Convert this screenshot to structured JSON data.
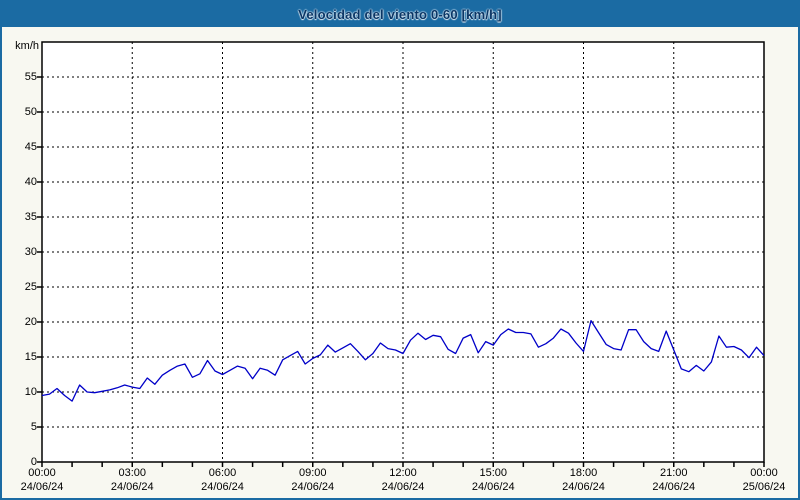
{
  "header": {
    "title": "Velocidad del viento 0-60 [km/h]"
  },
  "colors": {
    "header_bg": "#1b6ba3",
    "frame_border": "#1b6ba3",
    "page_bg": "#f8f8f1",
    "plot_bg": "#ffffff",
    "plot_border": "#000000",
    "grid": "#000000",
    "line": "#0000c8",
    "title_text": "#0a3666",
    "axis_text": "#000000"
  },
  "chart_data": {
    "type": "line",
    "title": "Velocidad del viento 0-60 [km/h]",
    "ylabel": "km/h",
    "ylim": [
      0,
      60
    ],
    "y_ticks": [
      0,
      5,
      10,
      15,
      20,
      25,
      30,
      35,
      40,
      45,
      50,
      55
    ],
    "x_range_hours": [
      0,
      24
    ],
    "x_minor_tick_hours": 1,
    "x_major_tick_hours": 3,
    "grid": "dashed, both axes, black on white",
    "legend_position": "none",
    "x_tick_labels": [
      {
        "time": "00:00",
        "date": "24/06/24"
      },
      {
        "time": "03:00",
        "date": "24/06/24"
      },
      {
        "time": "06:00",
        "date": "24/06/24"
      },
      {
        "time": "09:00",
        "date": "24/06/24"
      },
      {
        "time": "12:00",
        "date": "24/06/24"
      },
      {
        "time": "15:00",
        "date": "24/06/24"
      },
      {
        "time": "18:00",
        "date": "24/06/24"
      },
      {
        "time": "21:00",
        "date": "24/06/24"
      },
      {
        "time": "00:00",
        "date": "25/06/24"
      }
    ],
    "series": [
      {
        "name": "Velocidad del viento",
        "color": "#0000c8",
        "start": "24/06/24 00:00",
        "end": "25/06/24 00:00",
        "sample_interval_hours": 0.25,
        "values": [
          9.5,
          9.7,
          10.5,
          9.5,
          8.7,
          11.0,
          10.0,
          9.9,
          10.1,
          10.3,
          10.6,
          11.0,
          10.7,
          10.5,
          12.0,
          11.1,
          12.4,
          13.1,
          13.7,
          14.0,
          12.1,
          12.6,
          14.5,
          13.0,
          12.5,
          13.1,
          13.7,
          13.4,
          11.9,
          13.4,
          13.1,
          12.4,
          14.6,
          15.2,
          15.8,
          14.0,
          14.8,
          15.3,
          16.7,
          15.7,
          16.3,
          16.9,
          15.8,
          14.6,
          15.5,
          17.0,
          16.2,
          16.0,
          15.5,
          17.4,
          18.4,
          17.5,
          18.1,
          17.9,
          16.1,
          15.5,
          17.7,
          18.2,
          15.6,
          17.2,
          16.7,
          18.2,
          19.0,
          18.5,
          18.5,
          18.3,
          16.4,
          16.9,
          17.7,
          19.0,
          18.4,
          17.0,
          15.8,
          20.2,
          18.5,
          16.8,
          16.2,
          16.0,
          18.9,
          18.9,
          17.2,
          16.2,
          15.8,
          18.7,
          16.0,
          13.3,
          12.9,
          13.8,
          13.0,
          14.3,
          18.0,
          16.4,
          16.5,
          16.0,
          14.9,
          16.4,
          15.2
        ]
      }
    ]
  }
}
